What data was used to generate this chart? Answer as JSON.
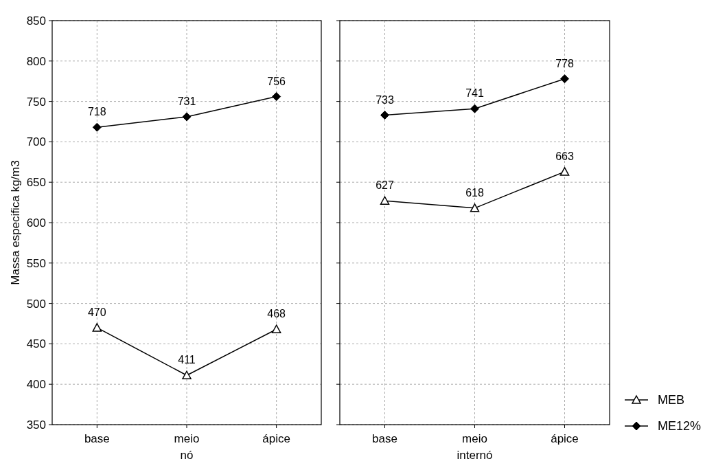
{
  "chart_data": [
    {
      "type": "line",
      "xlabel": "nó",
      "ylabel": "Massa especifica kg/m3",
      "categories": [
        "base",
        "meio",
        "ápice"
      ],
      "ylim": [
        350,
        850
      ],
      "yticks": [
        350,
        400,
        450,
        500,
        550,
        600,
        650,
        700,
        750,
        800,
        850
      ],
      "grid": true,
      "data_labels": true,
      "legend": false,
      "series": [
        {
          "color": "#000000",
          "marker": "triangle",
          "values": [
            470,
            411,
            468
          ]
        },
        {
          "color": "#000000",
          "marker": "diamond",
          "values": [
            718,
            731,
            756
          ]
        }
      ]
    },
    {
      "type": "line",
      "xlabel": "internó",
      "categories": [
        "base",
        "meio",
        "ápice"
      ],
      "ylim": [
        350,
        850
      ],
      "yticks": [
        350,
        400,
        450,
        500,
        550,
        600,
        650,
        700,
        750,
        800,
        850
      ],
      "tick_labels": "x",
      "grid": true,
      "data_labels": true,
      "legend": "right",
      "series": [
        {
          "name": "MEB",
          "color": "#000000",
          "marker": "triangle",
          "values": [
            627,
            618,
            663
          ]
        },
        {
          "name": "ME12%",
          "color": "#000000",
          "marker": "diamond",
          "values": [
            733,
            741,
            778
          ]
        }
      ]
    }
  ]
}
